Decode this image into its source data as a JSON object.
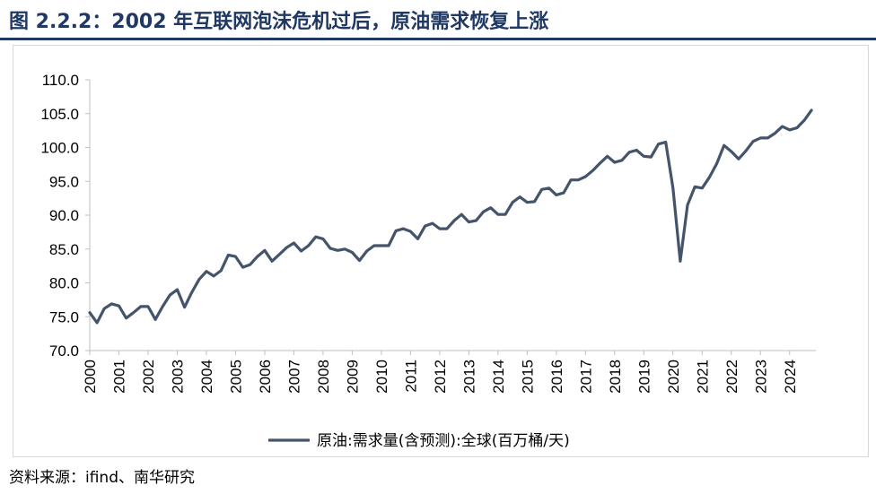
{
  "title": "图 2.2.2：2002 年互联网泡沫危机过后，原油需求恢复上涨",
  "source": "资料来源：ifind、南华研究",
  "colors": {
    "title": "#1f3864",
    "line": "#44546a",
    "axis": "#bfbfbf"
  },
  "chart_data": {
    "type": "line",
    "ylim": [
      70,
      110
    ],
    "yticks": [
      "70.0",
      "75.0",
      "80.0",
      "85.0",
      "90.0",
      "95.0",
      "100.0",
      "105.0",
      "110.0"
    ],
    "xlim": [
      2000,
      2024.9
    ],
    "xticks": [
      "2000",
      "2001",
      "2002",
      "2003",
      "2004",
      "2005",
      "2006",
      "2007",
      "2008",
      "2009",
      "2010",
      "2011",
      "2012",
      "2013",
      "2014",
      "2015",
      "2016",
      "2017",
      "2018",
      "2019",
      "2020",
      "2021",
      "2022",
      "2023",
      "2024"
    ],
    "legend_position": "bottom",
    "series": [
      {
        "name": "原油:需求量(含预测):全球(百万桶/天)",
        "x": [
          2000.0,
          2000.25,
          2000.5,
          2000.75,
          2001.0,
          2001.25,
          2001.5,
          2001.75,
          2002.0,
          2002.25,
          2002.5,
          2002.75,
          2003.0,
          2003.25,
          2003.5,
          2003.75,
          2004.0,
          2004.25,
          2004.5,
          2004.75,
          2005.0,
          2005.25,
          2005.5,
          2005.75,
          2006.0,
          2006.25,
          2006.5,
          2006.75,
          2007.0,
          2007.25,
          2007.5,
          2007.75,
          2008.0,
          2008.25,
          2008.5,
          2008.75,
          2009.0,
          2009.25,
          2009.5,
          2009.75,
          2010.0,
          2010.25,
          2010.5,
          2010.75,
          2011.0,
          2011.25,
          2011.5,
          2011.75,
          2012.0,
          2012.25,
          2012.5,
          2012.75,
          2013.0,
          2013.25,
          2013.5,
          2013.75,
          2014.0,
          2014.25,
          2014.5,
          2014.75,
          2015.0,
          2015.25,
          2015.5,
          2015.75,
          2016.0,
          2016.25,
          2016.5,
          2016.75,
          2017.0,
          2017.25,
          2017.5,
          2017.75,
          2018.0,
          2018.25,
          2018.5,
          2018.75,
          2019.0,
          2019.25,
          2019.5,
          2019.75,
          2020.0,
          2020.25,
          2020.5,
          2020.75,
          2021.0,
          2021.25,
          2021.5,
          2021.75,
          2022.0,
          2022.25,
          2022.5,
          2022.75,
          2023.0,
          2023.25,
          2023.5,
          2023.75,
          2024.0,
          2024.25,
          2024.5,
          2024.75
        ],
        "values": [
          75.6,
          74.1,
          76.2,
          76.9,
          76.6,
          74.8,
          75.6,
          76.5,
          76.5,
          74.6,
          76.5,
          78.2,
          79.0,
          76.4,
          78.6,
          80.5,
          81.7,
          81.0,
          81.8,
          84.1,
          83.9,
          82.3,
          82.7,
          83.9,
          84.8,
          83.2,
          84.2,
          85.2,
          85.9,
          84.7,
          85.5,
          86.8,
          86.5,
          85.1,
          84.8,
          85.0,
          84.5,
          83.3,
          84.7,
          85.5,
          85.5,
          85.5,
          87.7,
          88.0,
          87.6,
          86.5,
          88.4,
          88.8,
          88.0,
          88.0,
          89.2,
          90.1,
          89.0,
          89.2,
          90.5,
          91.1,
          90.1,
          90.1,
          91.9,
          92.7,
          91.9,
          92.0,
          93.8,
          94.0,
          93.0,
          93.3,
          95.2,
          95.2,
          95.7,
          96.6,
          97.7,
          98.7,
          97.8,
          98.1,
          99.3,
          99.6,
          98.7,
          98.6,
          100.5,
          100.8,
          94.0,
          83.2,
          91.5,
          94.2,
          94.0,
          95.6,
          97.6,
          100.3,
          99.4,
          98.3,
          99.5,
          100.9,
          101.4,
          101.4,
          102.1,
          103.1,
          102.6,
          102.9,
          104.0,
          105.5
        ]
      }
    ]
  }
}
